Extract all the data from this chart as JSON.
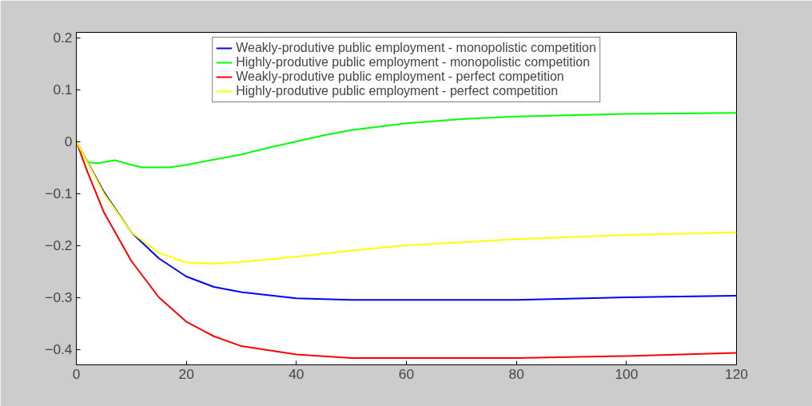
{
  "chart_data": {
    "type": "line",
    "xlim": [
      0,
      120
    ],
    "ylim": [
      -0.43,
      0.21
    ],
    "xticks": [
      0,
      20,
      40,
      60,
      80,
      100,
      120
    ],
    "yticks": [
      0.2,
      0.1,
      0,
      -0.1,
      -0.2,
      -0.3,
      -0.4
    ],
    "grid": false,
    "legend": "top",
    "line_style": "solid",
    "marker": "none",
    "series": [
      {
        "name": "Weakly-produtive public employment - monopolistic competition",
        "color": "#0000ff",
        "x": [
          0,
          5,
          10,
          15,
          20,
          25,
          30,
          40,
          50,
          60,
          80,
          100,
          120
        ],
        "values": [
          0,
          -0.097,
          -0.175,
          -0.225,
          -0.26,
          -0.28,
          -0.29,
          -0.302,
          -0.305,
          -0.305,
          -0.305,
          -0.3,
          -0.297
        ]
      },
      {
        "name": "Highly-produtive public employment - monopolistic competition",
        "color": "#00ff00",
        "x": [
          0,
          2,
          4,
          7,
          10,
          12,
          17,
          20,
          25,
          30,
          35,
          40,
          45,
          50,
          60,
          70,
          80,
          100,
          120
        ],
        "values": [
          0,
          -0.04,
          -0.042,
          -0.036,
          -0.045,
          -0.05,
          -0.05,
          -0.045,
          -0.035,
          -0.025,
          -0.012,
          0,
          0.012,
          0.022,
          0.035,
          0.043,
          0.048,
          0.053,
          0.055
        ]
      },
      {
        "name": "Weakly-produtive public employment - perfect competition",
        "color": "#ff0000",
        "x": [
          0,
          2,
          5,
          10,
          15,
          20,
          25,
          30,
          40,
          50,
          60,
          80,
          100,
          120
        ],
        "values": [
          0,
          -0.058,
          -0.136,
          -0.23,
          -0.3,
          -0.347,
          -0.375,
          -0.394,
          -0.41,
          -0.417,
          -0.417,
          -0.417,
          -0.413,
          -0.407
        ]
      },
      {
        "name": "Highly-produtive public employment - perfect competition",
        "color": "#ffff00",
        "x": [
          0,
          2,
          5,
          10,
          15,
          20,
          25,
          30,
          40,
          50,
          60,
          80,
          100,
          120
        ],
        "values": [
          0,
          -0.04,
          -0.1,
          -0.175,
          -0.214,
          -0.233,
          -0.235,
          -0.232,
          -0.222,
          -0.21,
          -0.2,
          -0.188,
          -0.18,
          -0.175
        ]
      }
    ]
  }
}
